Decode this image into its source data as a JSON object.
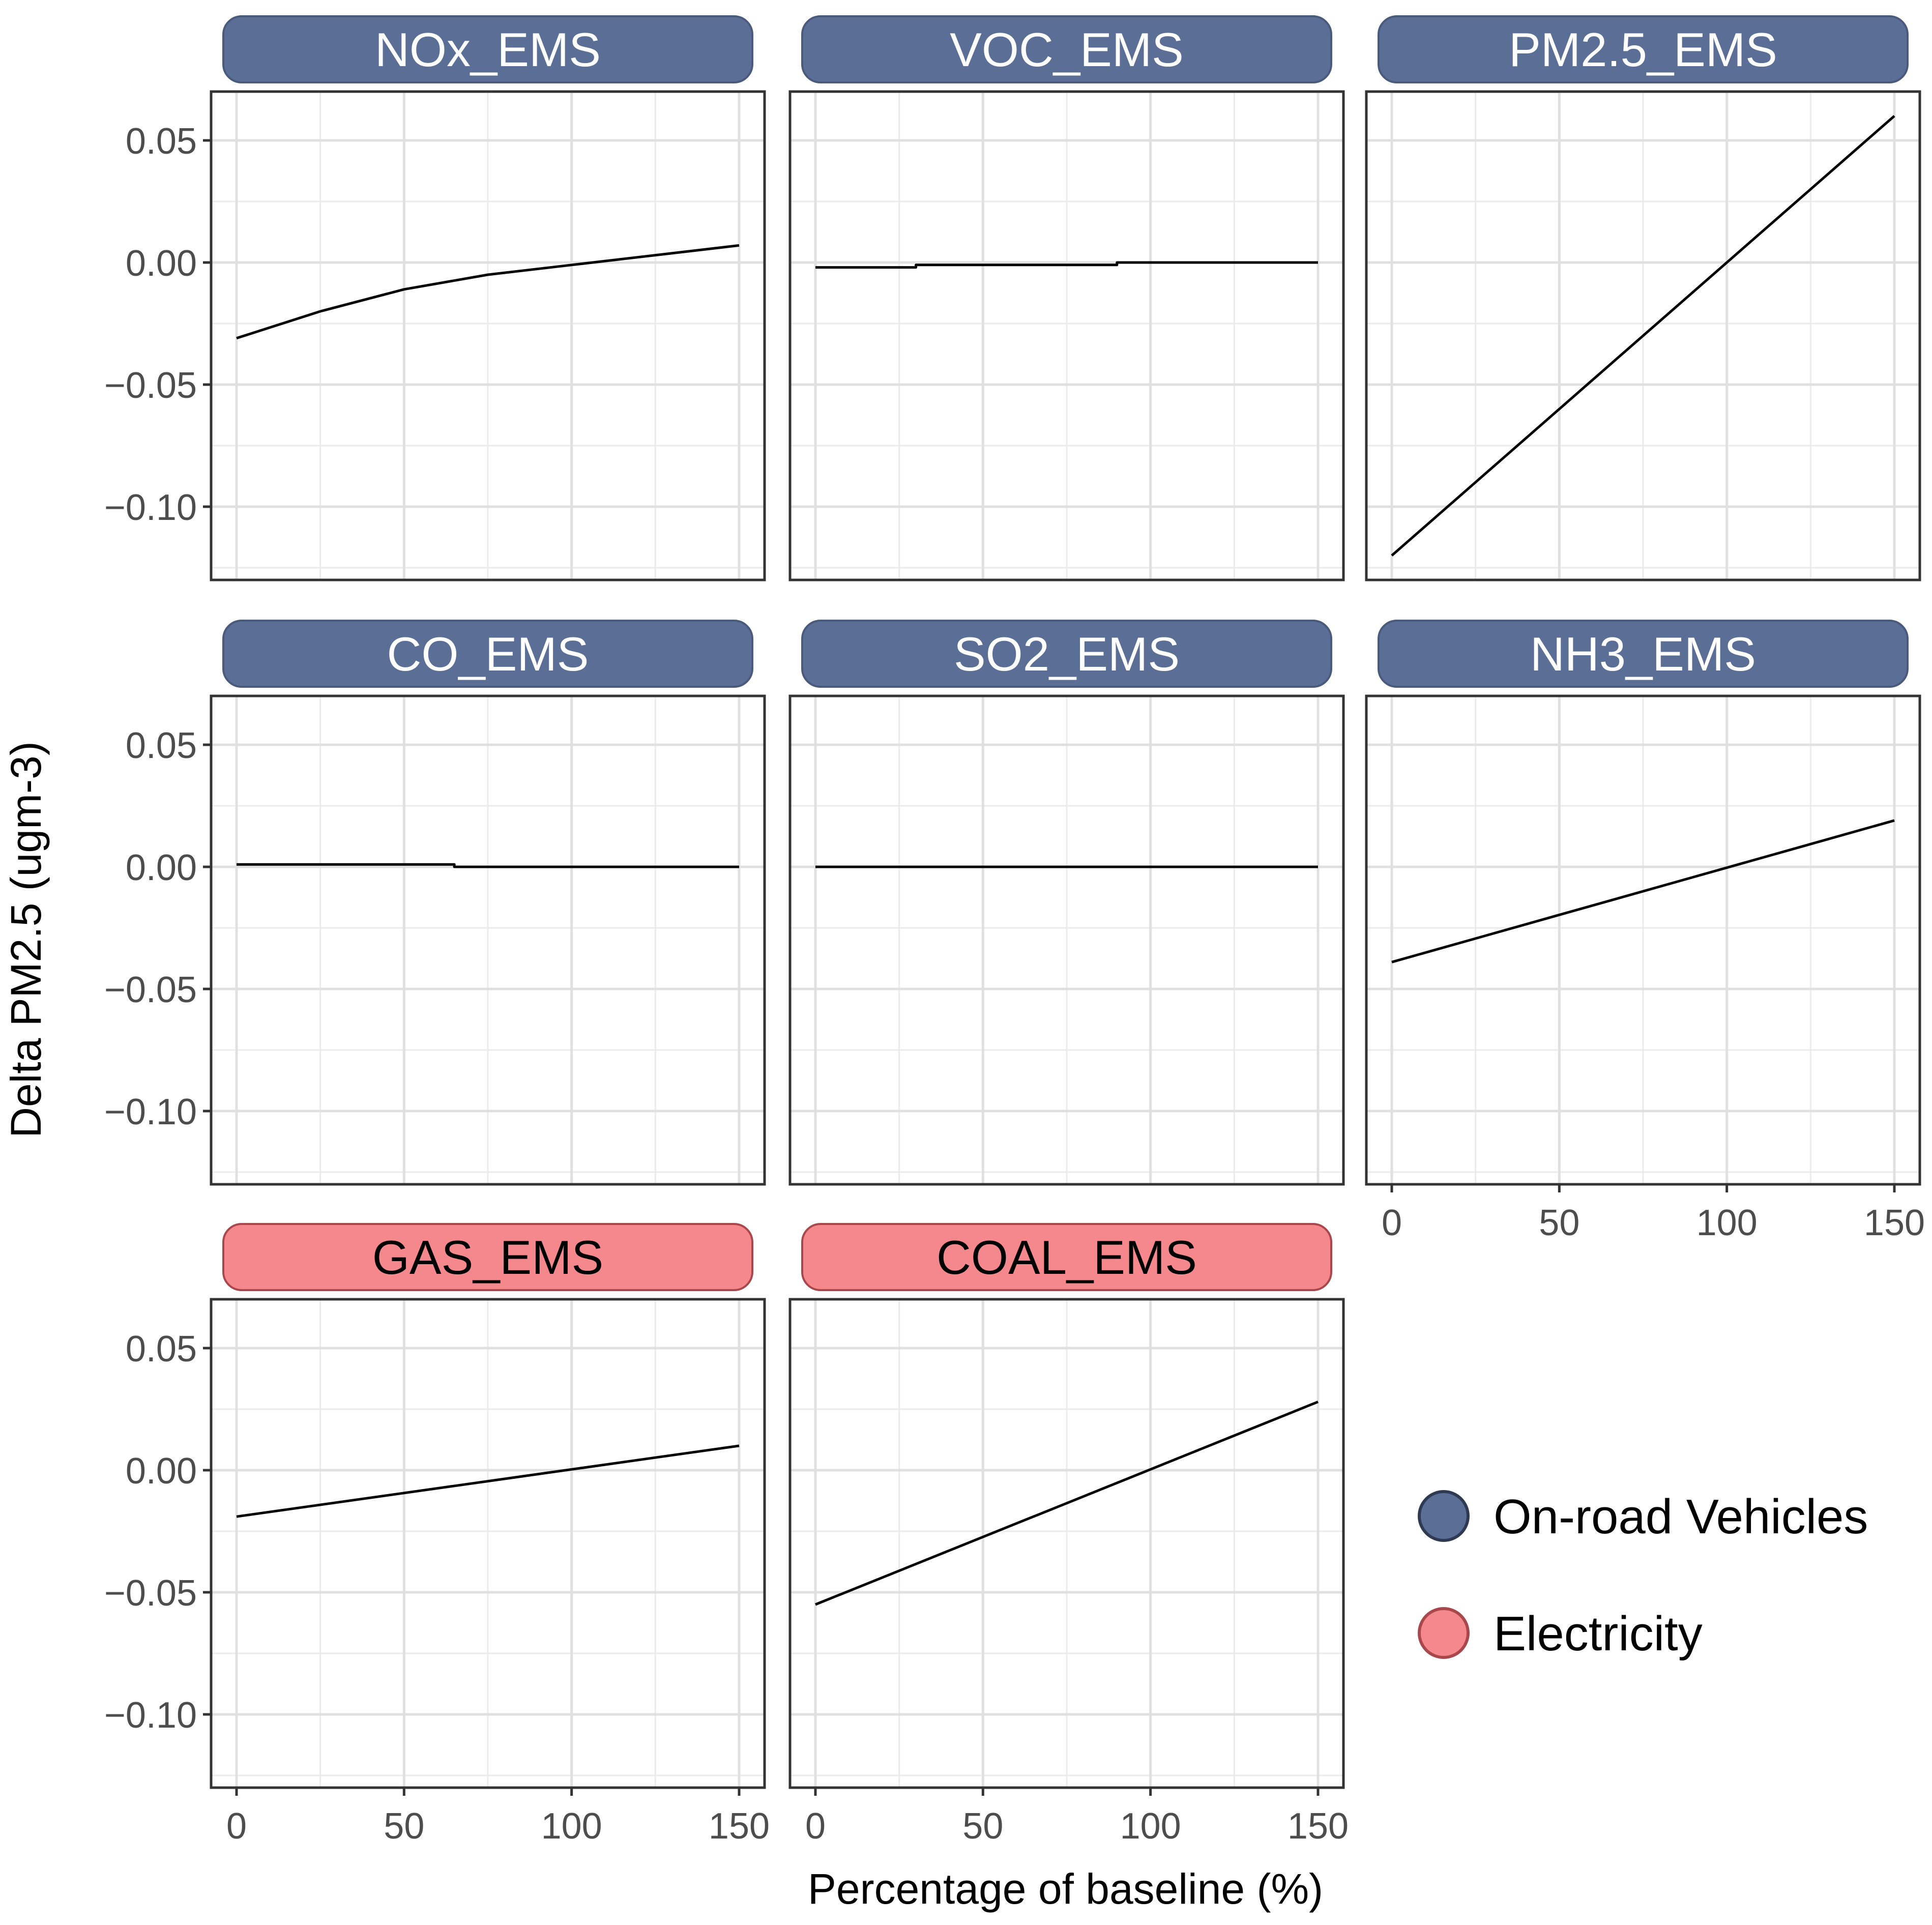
{
  "chart_data": {
    "type": "line",
    "xlabel": "Percentage of baseline (%)",
    "ylabel": "Delta PM2.5 (ugm-3)",
    "xlim": [
      0,
      150
    ],
    "ylim": [
      -0.13,
      0.07
    ],
    "x_ticks": [
      0,
      50,
      100,
      150
    ],
    "x_tick_labels": [
      "0",
      "50",
      "100",
      "150"
    ],
    "y_ticks": [
      0.05,
      0.0,
      -0.05,
      -0.1
    ],
    "y_tick_labels": [
      "0.05",
      "0.00",
      "−0.05",
      "−0.10"
    ],
    "grid": true,
    "legend": {
      "placement": "bottom-right",
      "entries": [
        {
          "label": "On-road Vehicles",
          "color": "#5b6e96",
          "edge": "#2f3a52"
        },
        {
          "label": "Electricity",
          "color": "#f4888d",
          "edge": "#a8474c"
        }
      ]
    },
    "panels": [
      {
        "title": "NOx_EMS",
        "sector": "On-road Vehicles",
        "strip_color": "#5b6e96",
        "text_color": "#ffffff",
        "x": [
          0,
          25,
          50,
          75,
          100,
          125,
          150
        ],
        "y": [
          -0.031,
          -0.02,
          -0.011,
          -0.005,
          -0.001,
          0.003,
          0.007
        ]
      },
      {
        "title": "VOC_EMS",
        "sector": "On-road Vehicles",
        "strip_color": "#5b6e96",
        "text_color": "#ffffff",
        "x": [
          0,
          30,
          30,
          90,
          90,
          150
        ],
        "y": [
          -0.002,
          -0.002,
          -0.001,
          -0.001,
          0.0,
          0.0
        ]
      },
      {
        "title": "PM2.5_EMS",
        "sector": "On-road Vehicles",
        "strip_color": "#5b6e96",
        "text_color": "#ffffff",
        "x": [
          0,
          150
        ],
        "y": [
          -0.12,
          0.06
        ]
      },
      {
        "title": "CO_EMS",
        "sector": "On-road Vehicles",
        "strip_color": "#5b6e96",
        "text_color": "#ffffff",
        "x": [
          0,
          65,
          65,
          150
        ],
        "y": [
          0.001,
          0.001,
          0.0,
          0.0
        ]
      },
      {
        "title": "SO2_EMS",
        "sector": "On-road Vehicles",
        "strip_color": "#5b6e96",
        "text_color": "#ffffff",
        "x": [
          0,
          150
        ],
        "y": [
          0.0,
          0.0
        ]
      },
      {
        "title": "NH3_EMS",
        "sector": "On-road Vehicles",
        "strip_color": "#5b6e96",
        "text_color": "#ffffff",
        "x": [
          0,
          150
        ],
        "y": [
          -0.039,
          0.019
        ]
      },
      {
        "title": "GAS_EMS",
        "sector": "Electricity",
        "strip_color": "#f4888d",
        "text_color": "#000000",
        "x": [
          0,
          150
        ],
        "y": [
          -0.019,
          0.01
        ]
      },
      {
        "title": "COAL_EMS",
        "sector": "Electricity",
        "strip_color": "#f4888d",
        "text_color": "#000000",
        "x": [
          0,
          150
        ],
        "y": [
          -0.055,
          0.028
        ]
      }
    ]
  }
}
